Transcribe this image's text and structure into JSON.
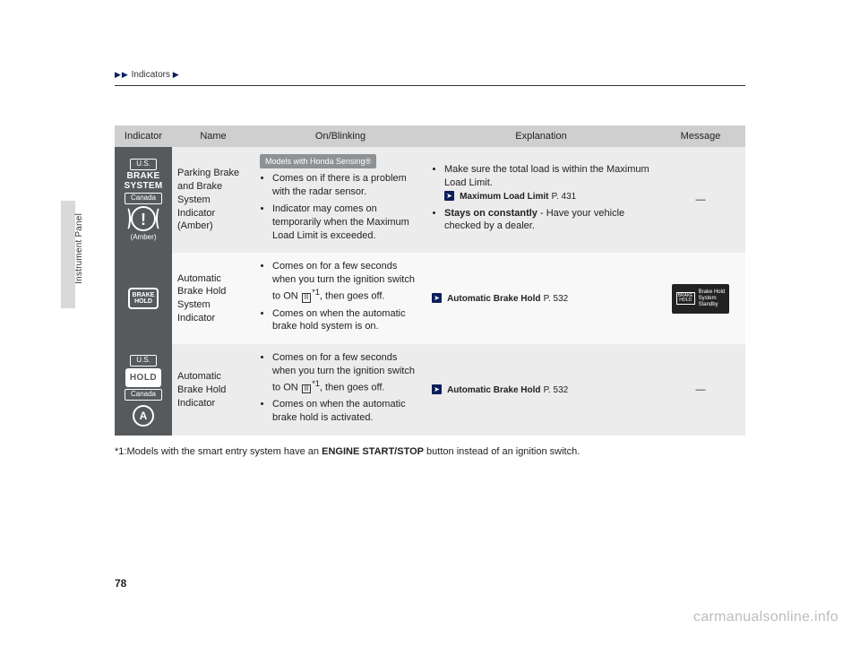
{
  "breadcrumb": {
    "label": "Indicators"
  },
  "side": {
    "label": "Instrument Panel"
  },
  "table": {
    "headers": {
      "indicator": "Indicator",
      "name": "Name",
      "on": "On/Blinking",
      "exp": "Explanation",
      "msg": "Message"
    },
    "rows": [
      {
        "sym": {
          "us_label": "U.S.",
          "brake_l1": "BRAKE",
          "brake_l2": "SYSTEM",
          "canada_label": "Canada",
          "amber_label": "(Amber)"
        },
        "name": "Parking Brake and Brake System Indicator (Amber)",
        "model_tag": "Models with Honda Sensing®",
        "on_items": [
          "Comes on if there is a problem with the radar sensor.",
          "Indicator may comes on temporarily when the Maximum Load Limit is exceeded."
        ],
        "exp_items": [
          {
            "text": "Make sure the total load is within the Maximum Load Limit.",
            "ref_title": "Maximum Load Limit",
            "ref_page": "P. 431"
          },
          {
            "prefix_bold": "Stays on constantly",
            "text": " - Have your vehicle checked by a dealer."
          }
        ],
        "msg_dash": "—"
      },
      {
        "sym": {
          "bh_l1": "BRAKE",
          "bh_l2": "HOLD"
        },
        "name": "Automatic Brake Hold System Indicator",
        "on_pre": "Comes on for a few seconds when you turn the ignition switch to ON ",
        "on_ii": "II",
        "on_sup": "*1",
        "on_post": ", then goes off.",
        "on_item2": "Comes on when the automatic brake hold system is on.",
        "exp_ref_title": "Automatic Brake Hold",
        "exp_ref_page": "P. 532",
        "msg_icon_l1": "BRAKE",
        "msg_icon_l2": "HOLD",
        "msg_text": "Brake Hold\nSystem\nStandby"
      },
      {
        "sym": {
          "us_label": "U.S.",
          "hold_label": "HOLD",
          "canada_label": "Canada",
          "a_label": "A"
        },
        "name": "Automatic Brake Hold Indicator",
        "on_pre": "Comes on for a few seconds when you turn the ignition switch to ON ",
        "on_ii": "II",
        "on_sup": "*1",
        "on_post": ", then goes off.",
        "on_item2": "Comes on when the automatic brake hold is activated.",
        "exp_ref_title": "Automatic Brake Hold",
        "exp_ref_page": "P. 532",
        "msg_dash": "—"
      }
    ]
  },
  "footnote": {
    "prefix": "*1:Models with the smart entry system have an ",
    "bold": "ENGINE START/STOP",
    "suffix": " button instead of an ignition switch."
  },
  "page_number": "78",
  "watermark": "carmanualsonline.info"
}
